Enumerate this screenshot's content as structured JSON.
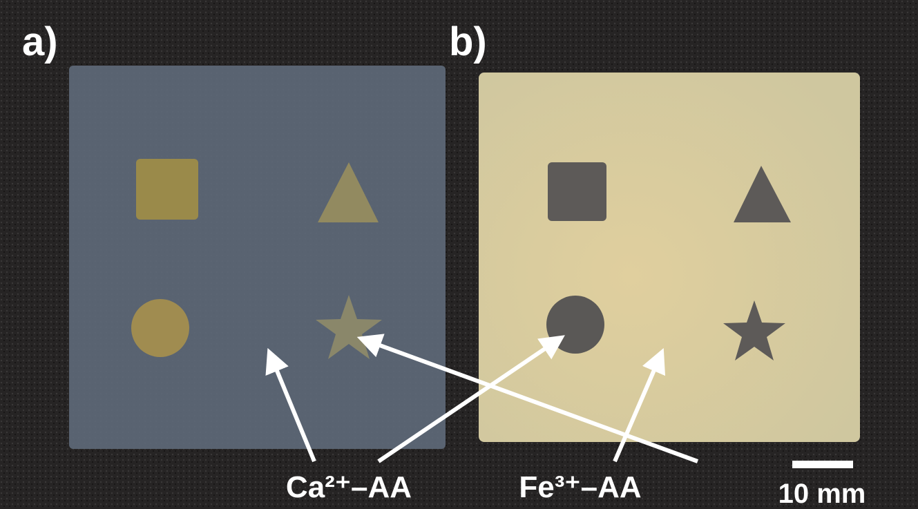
{
  "panels": [
    {
      "label": "a)"
    },
    {
      "label": "b)"
    }
  ],
  "annotations": [
    "Ca²⁺–AA",
    "Fe³⁺–AA"
  ],
  "scale_bar": "10 mm"
}
